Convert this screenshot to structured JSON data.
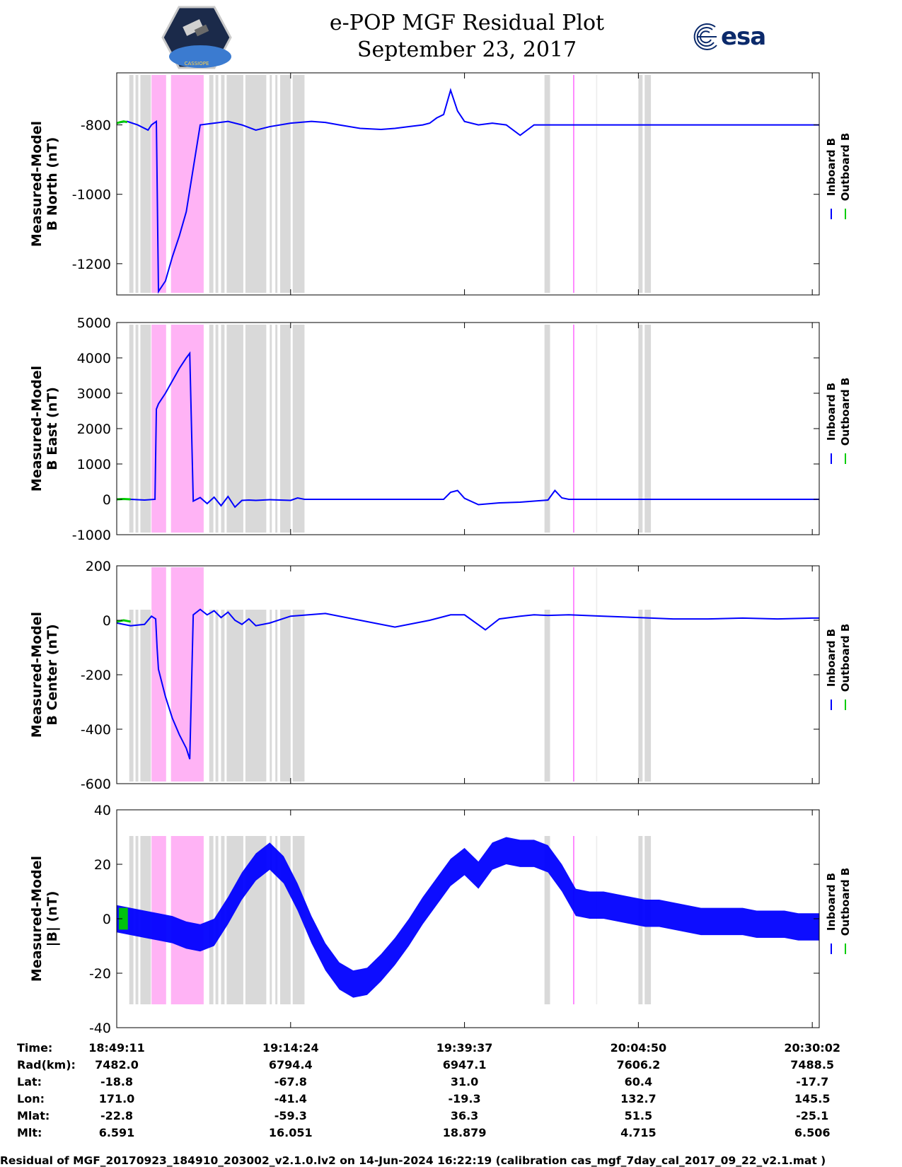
{
  "header": {
    "title_line1": "e-POP MGF Residual Plot",
    "title_line2": "September 23, 2017",
    "mission_logo_text": "CASSIOPE",
    "agency_logo_text": "esa"
  },
  "colors": {
    "inboard": "#0000ff",
    "outboard": "#00cc00",
    "gray_band": "#d9d9d9",
    "pink_band": "#ffb3f5",
    "pink_line": "#ff66ff"
  },
  "chart_data": [
    {
      "type": "line",
      "ylabel_line1": "Measured-Model",
      "ylabel_line2": "B North (nT)",
      "ylim": [
        -1290,
        -650
      ],
      "yticks": [
        -1200,
        -1000,
        -800
      ],
      "ytick_labels": [
        "-1200",
        "-1000",
        "-800"
      ],
      "series": [
        {
          "name": "Inboard B",
          "x": [
            0,
            1.5,
            3,
            4.5,
            5,
            5.7,
            6,
            7,
            8,
            9,
            10,
            12,
            14,
            16,
            18,
            20,
            22,
            25,
            28,
            30,
            32,
            35,
            38,
            40,
            42,
            44,
            45,
            46,
            47,
            48,
            49,
            50,
            52,
            54,
            56,
            58,
            60,
            62,
            64,
            66,
            68,
            70,
            72,
            74,
            76,
            78,
            80,
            82,
            84,
            86,
            88,
            90,
            92,
            94,
            96,
            98,
            100,
            101
          ],
          "y": [
            -795,
            -790,
            -800,
            -815,
            -800,
            -790,
            -1280,
            -1250,
            -1180,
            -1120,
            -1050,
            -800,
            -795,
            -790,
            -800,
            -815,
            -805,
            -795,
            -790,
            -793,
            -800,
            -810,
            -813,
            -810,
            -805,
            -800,
            -795,
            -780,
            -770,
            -700,
            -760,
            -790,
            -800,
            -795,
            -800,
            -830,
            -800,
            -800,
            -800,
            -800,
            -800,
            -800,
            -800,
            -800,
            -800,
            -800,
            -800,
            -800,
            -800,
            -800,
            -800,
            -800,
            -800,
            -800,
            -800,
            -800,
            -800,
            -800
          ]
        },
        {
          "name": "Outboard B",
          "x": [
            0,
            0.5,
            1,
            1.5
          ],
          "y": [
            -795,
            -792,
            -790,
            -792
          ]
        }
      ]
    },
    {
      "type": "line",
      "ylabel_line1": "Measured-Model",
      "ylabel_line2": "B East (nT)",
      "ylim": [
        -1000,
        5000
      ],
      "yticks": [
        -1000,
        0,
        1000,
        2000,
        3000,
        4000,
        5000
      ],
      "ytick_labels": [
        "-1000",
        "0",
        "1000",
        "2000",
        "3000",
        "4000",
        "5000"
      ],
      "series": [
        {
          "name": "Inboard B",
          "x": [
            0,
            2,
            4,
            5.5,
            5.7,
            6,
            7,
            8,
            9,
            10,
            10.5,
            11,
            12,
            13,
            14,
            15,
            16,
            17,
            18,
            19,
            20,
            22,
            25,
            26,
            27,
            30,
            35,
            40,
            45,
            47,
            48,
            49,
            50,
            52,
            55,
            58,
            60,
            62,
            63,
            64,
            65,
            70,
            75,
            80,
            85,
            90,
            95,
            100,
            101
          ],
          "y": [
            0,
            0,
            -20,
            0,
            2550,
            2700,
            3000,
            3350,
            3700,
            4000,
            4130,
            -50,
            50,
            -120,
            60,
            -180,
            80,
            -220,
            -30,
            -20,
            -30,
            -10,
            -30,
            40,
            0,
            0,
            0,
            0,
            0,
            0,
            200,
            250,
            30,
            -150,
            -100,
            -80,
            -50,
            -20,
            250,
            40,
            0,
            0,
            0,
            0,
            0,
            0,
            0,
            0,
            0
          ]
        },
        {
          "name": "Outboard B",
          "x": [
            0,
            1,
            2
          ],
          "y": [
            0,
            10,
            0
          ]
        }
      ]
    },
    {
      "type": "line",
      "ylabel_line1": "Measured-Model",
      "ylabel_line2": "B Center (nT)",
      "ylim": [
        -600,
        200
      ],
      "yticks": [
        -600,
        -400,
        -200,
        0,
        200
      ],
      "ytick_labels": [
        "-600",
        "-400",
        "-200",
        "0",
        "200"
      ],
      "series": [
        {
          "name": "Inboard B",
          "x": [
            0,
            2,
            4,
            5,
            5.6,
            5.8,
            6,
            7,
            8,
            9,
            10,
            10.5,
            11,
            12,
            13,
            14,
            15,
            16,
            17,
            18,
            19,
            20,
            22,
            25,
            30,
            35,
            40,
            45,
            48,
            50,
            53,
            55,
            58,
            60,
            62,
            65,
            70,
            75,
            80,
            85,
            90,
            95,
            100,
            101
          ],
          "y": [
            -10,
            -20,
            -15,
            15,
            5,
            -100,
            -180,
            -280,
            -360,
            -420,
            -470,
            -510,
            20,
            40,
            20,
            35,
            10,
            30,
            0,
            -15,
            5,
            -20,
            -10,
            15,
            25,
            0,
            -25,
            0,
            20,
            20,
            -35,
            5,
            15,
            20,
            18,
            20,
            15,
            10,
            5,
            5,
            8,
            5,
            8,
            8
          ]
        },
        {
          "name": "Outboard B",
          "x": [
            0,
            1,
            2
          ],
          "y": [
            -5,
            0,
            -5
          ]
        }
      ]
    },
    {
      "type": "line",
      "ylabel_line1": "Measured-Model",
      "ylabel_line2": "|B| (nT)",
      "ylim": [
        -40,
        40
      ],
      "yticks": [
        -40,
        -20,
        0,
        20,
        40
      ],
      "ytick_labels": [
        "-40",
        "-20",
        "0",
        "20",
        "40"
      ],
      "series": [
        {
          "name": "Inboard B",
          "x": [
            0,
            2,
            4,
            6,
            8,
            10,
            12,
            14,
            16,
            18,
            20,
            22,
            24,
            26,
            28,
            30,
            32,
            34,
            36,
            38,
            40,
            42,
            44,
            46,
            48,
            50,
            52,
            54,
            56,
            58,
            60,
            62,
            64,
            66,
            68,
            70,
            72,
            74,
            76,
            78,
            80,
            82,
            84,
            86,
            88,
            90,
            92,
            94,
            96,
            98,
            100,
            101
          ],
          "y": [
            0,
            -1,
            -2,
            -3,
            -4,
            -6,
            -7,
            -5,
            3,
            12,
            19,
            23,
            18,
            8,
            -4,
            -14,
            -21,
            -24,
            -23,
            -18,
            -12,
            -5,
            3,
            10,
            17,
            21,
            16,
            23,
            25,
            24,
            24,
            22,
            15,
            6,
            5,
            5,
            4,
            3,
            2,
            2,
            1,
            0,
            -1,
            -1,
            -1,
            -1,
            -2,
            -2,
            -2,
            -3,
            -3,
            -3
          ],
          "envelope_halfwidth": 5
        },
        {
          "name": "Outboard B",
          "x": [
            0.3,
            1,
            1.6
          ],
          "y": [
            0,
            0,
            0
          ],
          "envelope_halfwidth": 4
        }
      ]
    }
  ],
  "shading": {
    "gray_ranges": [
      [
        1.8,
        2.4
      ],
      [
        2.7,
        3.1
      ],
      [
        3.4,
        4.9
      ],
      [
        13.3,
        13.9
      ],
      [
        14.2,
        14.6
      ],
      [
        15.0,
        15.5
      ],
      [
        15.8,
        18.2
      ],
      [
        18.5,
        21.5
      ],
      [
        22.0,
        22.3
      ],
      [
        22.8,
        23.1
      ],
      [
        23.5,
        25.0
      ],
      [
        25.3,
        27.0
      ],
      [
        61.5,
        62.3
      ],
      [
        75.0,
        75.6
      ],
      [
        75.9,
        76.8
      ]
    ],
    "pink_ranges": [
      [
        5.0,
        7.1
      ],
      [
        7.8,
        12.5
      ]
    ],
    "pink_lines": [
      65.7
    ],
    "faint_lines": [
      69.0
    ]
  },
  "xaxis": {
    "tick_positions": [
      0,
      25,
      50,
      75,
      100
    ],
    "time_labels": [
      "18:49:11",
      "19:14:24",
      "19:39:37",
      "20:04:50",
      "20:30:02"
    ]
  },
  "legend": {
    "inboard_label": "Inboard B",
    "outboard_label": "Outboard B"
  },
  "ephemeris": {
    "rows": [
      {
        "label": "Time:",
        "values": [
          "18:49:11",
          "19:14:24",
          "19:39:37",
          "20:04:50",
          "20:30:02"
        ]
      },
      {
        "label": "Rad(km):",
        "values": [
          "7482.0",
          "6794.4",
          "6947.1",
          "7606.2",
          "7488.5"
        ]
      },
      {
        "label": "Lat:",
        "values": [
          "-18.8",
          "-67.8",
          "31.0",
          "60.4",
          "-17.7"
        ]
      },
      {
        "label": "Lon:",
        "values": [
          "171.0",
          "-41.4",
          "-19.3",
          "132.7",
          "145.5"
        ]
      },
      {
        "label": "Mlat:",
        "values": [
          "-22.8",
          "-59.3",
          "36.3",
          "51.5",
          "-25.1"
        ]
      },
      {
        "label": "Mlt:",
        "values": [
          "6.591",
          "16.051",
          "18.879",
          "4.715",
          "6.506"
        ]
      }
    ]
  },
  "footer": {
    "text": "Residual of MGF_20170923_184910_203002_v2.1.0.lv2 on 14-Jun-2024 16:22:19 (calibration cas_mgf_7day_cal_2017_09_22_v2.1.mat )"
  }
}
